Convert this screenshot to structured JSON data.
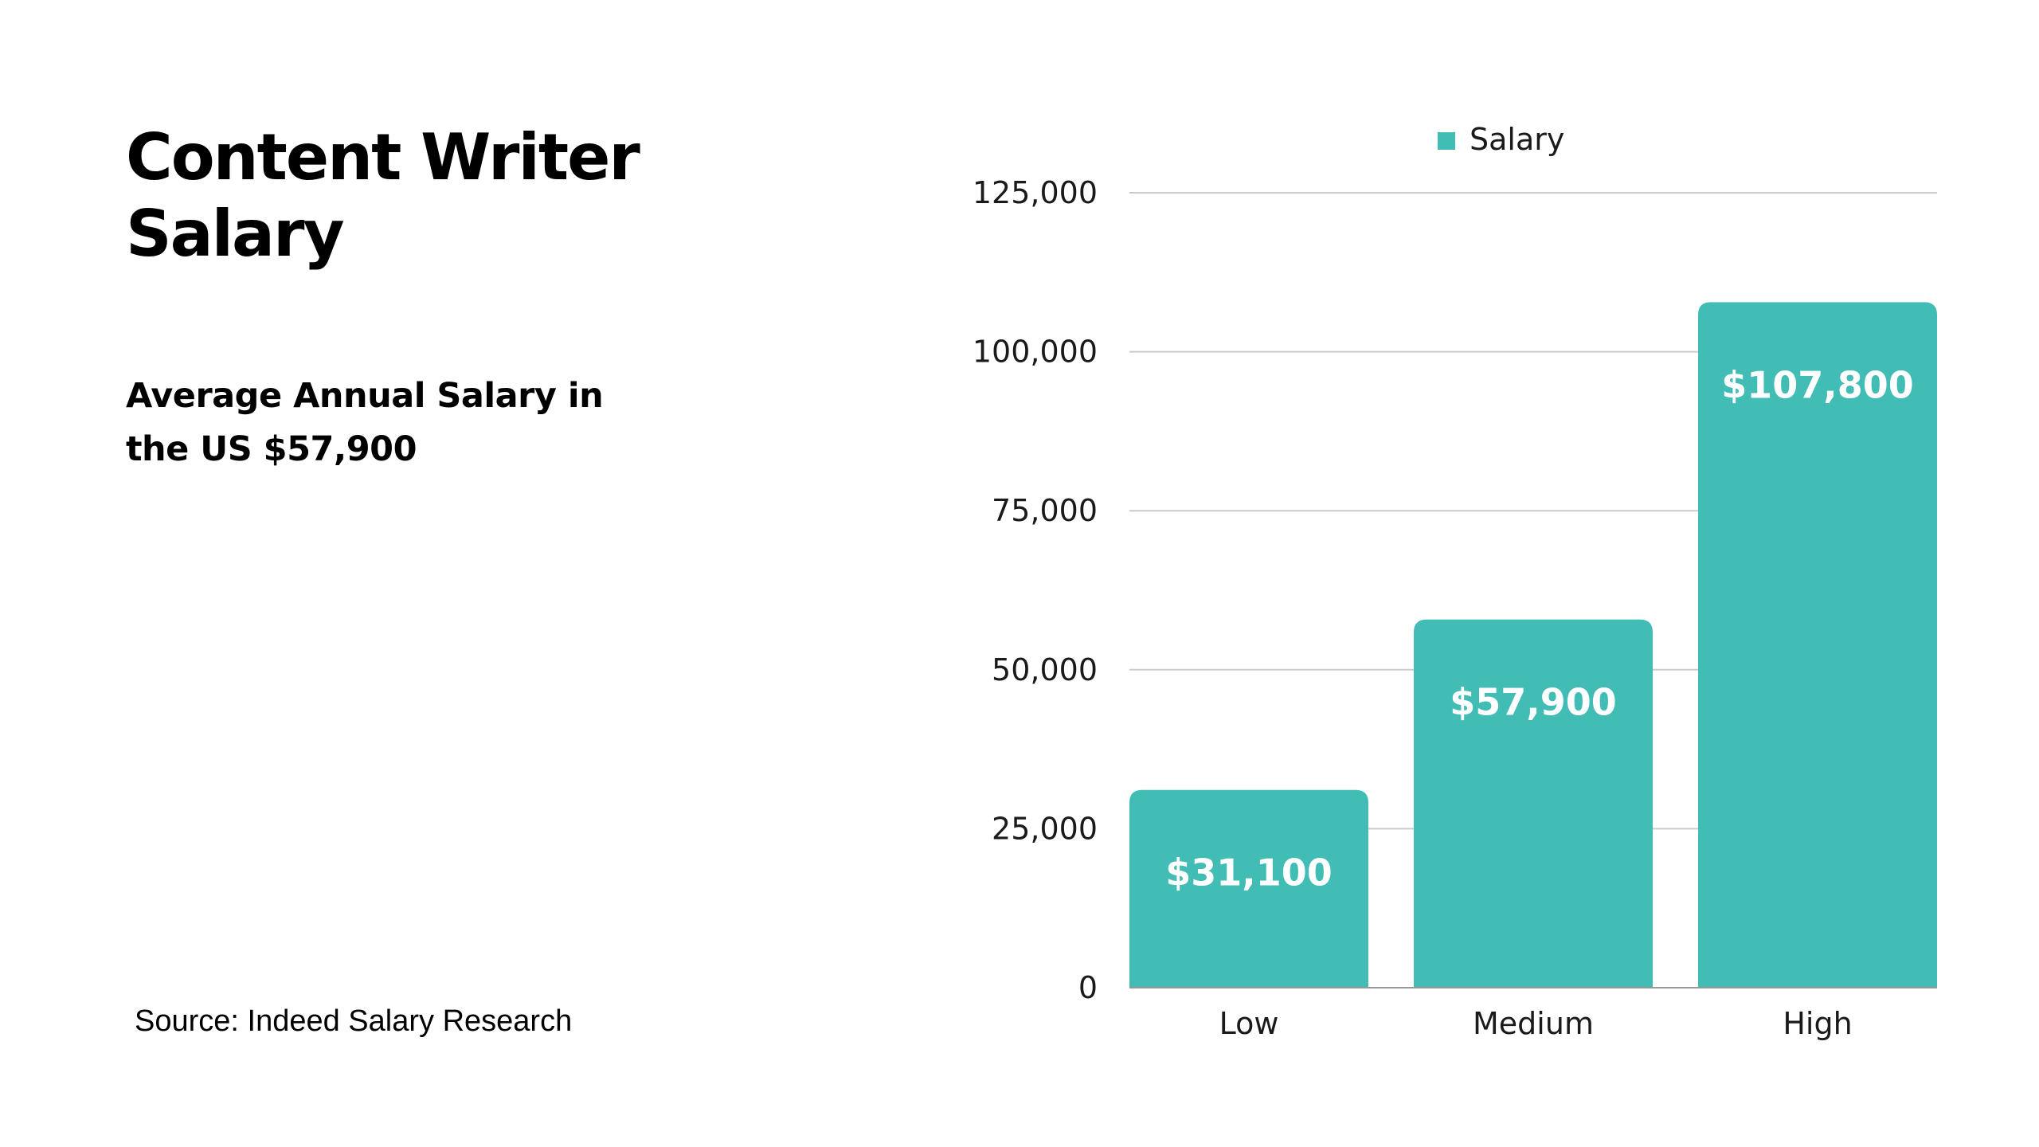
{
  "header": {
    "title_line1": "Content Writer",
    "title_line2": "Salary",
    "subtitle_line1": "Average Annual Salary in",
    "subtitle_line2": "the US $57,900"
  },
  "footer": {
    "source": "Source: Indeed Salary Research"
  },
  "chart_data": {
    "type": "bar",
    "categories": [
      "Low",
      "Medium",
      "High"
    ],
    "series": [
      {
        "name": "Salary",
        "values": [
          31100,
          57900,
          107800
        ],
        "data_labels": [
          "$31,100",
          "$57,900",
          "$107,800"
        ],
        "color": "#41BDB5"
      }
    ],
    "ylim": [
      0,
      125000
    ],
    "yticks": [
      0,
      25000,
      50000,
      75000,
      100000,
      125000
    ],
    "ytick_labels": [
      "0",
      "25,000",
      "50,000",
      "75,000",
      "100,000",
      "125,000"
    ],
    "grid": true,
    "legend_position": "top-center",
    "colors": {
      "bar": "#41BDB5",
      "grid": "#cccccc",
      "axis": "#999999"
    }
  }
}
